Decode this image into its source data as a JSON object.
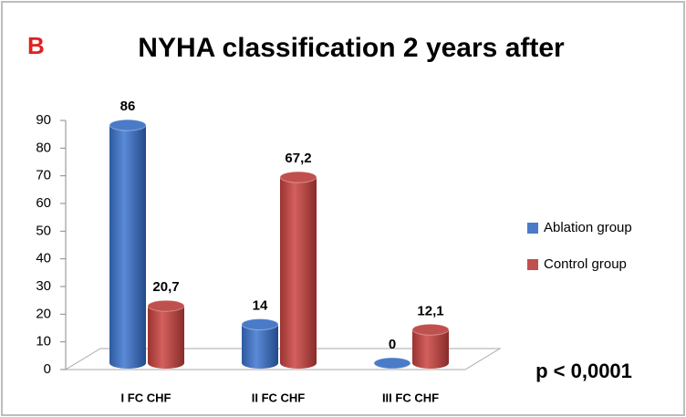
{
  "chart_data": {
    "type": "bar",
    "label": "B",
    "title": "NYHA classification 2 years after",
    "annotation": "p < 0,0001",
    "categories": [
      "I FC CHF",
      "II FC CHF",
      "III FC CHF"
    ],
    "series": [
      {
        "name": "Ablation group",
        "color": "#4a7bc8",
        "values": [
          86,
          14,
          0
        ]
      },
      {
        "name": "Control group",
        "color": "#c0504d",
        "values": [
          20.7,
          67.2,
          12.1
        ],
        "value_labels": [
          "20,7",
          "67,2",
          "12,1"
        ]
      }
    ],
    "ylim": [
      0,
      90
    ],
    "yticks": [
      0,
      10,
      20,
      30,
      40,
      50,
      60,
      70,
      80,
      90
    ],
    "grid": false,
    "legend": "right"
  }
}
